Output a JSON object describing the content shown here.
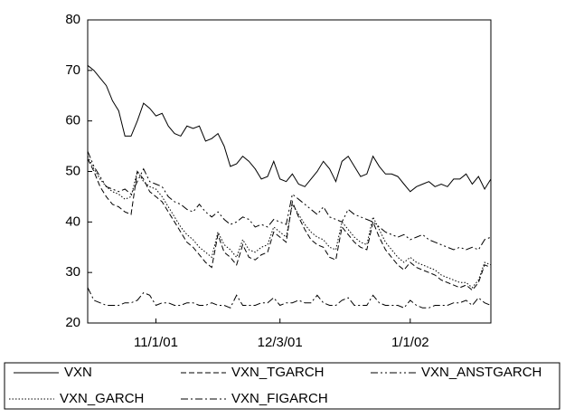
{
  "chart_data": {
    "type": "line",
    "categories": [
      null,
      null,
      null,
      null,
      null,
      null,
      null,
      null,
      null,
      null,
      null,
      "11/1/01",
      null,
      null,
      null,
      null,
      null,
      null,
      null,
      null,
      null,
      null,
      null,
      null,
      null,
      null,
      null,
      null,
      null,
      null,
      null,
      "12/3/01",
      null,
      null,
      null,
      null,
      null,
      null,
      null,
      null,
      null,
      null,
      null,
      null,
      null,
      null,
      null,
      null,
      null,
      null,
      null,
      null,
      "1/1/02",
      null,
      null,
      null,
      null,
      null,
      null,
      null,
      null,
      null,
      null,
      null,
      null,
      null
    ],
    "ylim": [
      20,
      80
    ],
    "yticks": [
      20,
      30,
      40,
      50,
      60,
      70,
      80
    ],
    "grid": false,
    "series": [
      {
        "name": "VXN",
        "color": "#000000",
        "style": "solid",
        "values": [
          71,
          70,
          68.5,
          67,
          64,
          62,
          57,
          57,
          60,
          63.5,
          62.5,
          61,
          61.5,
          59,
          57.5,
          57,
          59,
          58.5,
          59,
          56,
          56.5,
          57.5,
          55,
          51,
          51.5,
          53,
          52,
          50.5,
          48.5,
          49,
          52,
          48.5,
          48,
          49.5,
          47.5,
          47,
          48.5,
          50,
          52,
          50.5,
          48,
          52,
          53,
          51,
          49,
          49.5,
          53,
          51,
          49.5,
          49.5,
          49,
          47.5,
          46,
          47,
          47.5,
          48,
          47,
          47.5,
          47,
          48.5,
          48.5,
          49.5,
          47.5,
          49,
          46.5,
          48.5
        ]
      },
      {
        "name": "VXN_TGARCH",
        "color": "#000000",
        "style": "dashed",
        "values": [
          52.5,
          50,
          47,
          45,
          43.5,
          43,
          42,
          41.5,
          50,
          48.5,
          46,
          45,
          44,
          42,
          40,
          38,
          36,
          35,
          33.5,
          32,
          31,
          37.5,
          34,
          33,
          31.5,
          35.5,
          33,
          32.5,
          33.5,
          34,
          38,
          37,
          36,
          44,
          41,
          38.5,
          36.5,
          35.5,
          35,
          33,
          32.5,
          39,
          37.5,
          36,
          35,
          34.5,
          40,
          37,
          34.5,
          33,
          31.5,
          30.5,
          32,
          31,
          30.5,
          30,
          29.5,
          28.5,
          28,
          27.5,
          27,
          27.5,
          26.5,
          28,
          31.5,
          31
        ]
      },
      {
        "name": "VXN_ANSTGARCH",
        "color": "#000000",
        "style": "dashdotdot",
        "values": [
          54,
          51,
          49,
          47,
          46.5,
          46,
          46.5,
          45.5,
          48,
          50.5,
          48,
          47.5,
          47,
          45,
          44,
          43.5,
          42.5,
          42,
          43.5,
          42,
          41,
          42,
          40.5,
          39.5,
          40,
          41,
          40.5,
          39,
          39.5,
          39,
          40.5,
          40,
          39.5,
          45.5,
          44.5,
          43.5,
          42.5,
          41.5,
          43,
          41,
          40.5,
          40,
          42.5,
          41.5,
          41,
          40.5,
          40,
          39,
          38,
          37.5,
          37,
          37.5,
          36.5,
          37,
          37.5,
          36.5,
          36,
          35.5,
          35,
          34.5,
          35,
          34.5,
          35,
          34.5,
          36.5,
          37
        ]
      },
      {
        "name": "VXN_GARCH",
        "color": "#000000",
        "style": "dotted",
        "values": [
          53,
          50.5,
          48.5,
          47,
          46,
          45.5,
          44.5,
          45,
          50,
          48,
          47,
          46.5,
          45,
          43,
          41,
          39,
          37.5,
          36.5,
          35,
          34,
          33,
          38,
          35.5,
          34.5,
          33,
          36.5,
          34.5,
          34,
          35,
          35.5,
          39,
          38,
          37,
          43.5,
          41.5,
          39.5,
          38,
          37,
          36.5,
          35,
          34.5,
          40,
          38.5,
          37,
          36,
          35.5,
          41,
          38.5,
          36,
          34.5,
          33,
          32,
          33,
          32,
          31.5,
          31,
          30.5,
          29.5,
          29,
          28.5,
          28,
          28,
          27,
          28.5,
          32,
          31.5
        ]
      },
      {
        "name": "VXN_FIGARCH",
        "color": "#000000",
        "style": "dashdot",
        "values": [
          27,
          24.5,
          24,
          23.5,
          23.5,
          23.5,
          24,
          24,
          24.5,
          26,
          25.5,
          23.5,
          24,
          24,
          23.5,
          23.5,
          24,
          24,
          23.5,
          23.5,
          24,
          23.5,
          23.5,
          23,
          25.5,
          23.5,
          23.5,
          23.5,
          24,
          24,
          25,
          23.5,
          24,
          24,
          24.5,
          24,
          24,
          25.5,
          24,
          23.5,
          23.5,
          24.5,
          25,
          23.5,
          23.5,
          23.5,
          25.5,
          24,
          23.5,
          23.5,
          23.5,
          23,
          24.5,
          23.5,
          23,
          23,
          23.5,
          23.5,
          23.5,
          24,
          24,
          24.5,
          23.5,
          25,
          24,
          23.5
        ]
      }
    ]
  }
}
